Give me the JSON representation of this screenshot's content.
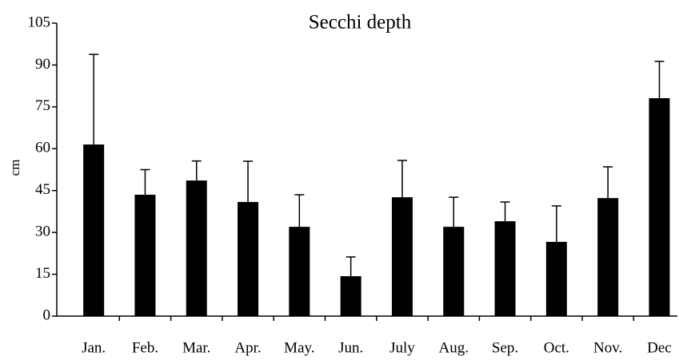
{
  "chart_data": {
    "type": "bar",
    "title": "Secchi depth",
    "y_label": "cm",
    "categories": [
      "Jan.",
      "Feb.",
      "Mar.",
      "Apr.",
      "May.",
      "Jun.",
      "July",
      "Aug.",
      "Sep.",
      "Oct.",
      "Nov.",
      "Dec"
    ],
    "values": [
      61.5,
      43.5,
      48.6,
      40.9,
      32,
      14.3,
      42.6,
      32,
      34,
      26.6,
      42.3,
      78.1
    ],
    "errors": [
      32.3,
      9,
      7,
      14.6,
      11.5,
      6.9,
      13.2,
      10.6,
      6.9,
      12.9,
      11.2,
      13.2
    ],
    "color": "#000000",
    "ylim": [
      0,
      105
    ],
    "yticks": [
      0,
      15,
      30,
      45,
      60,
      75,
      90,
      105
    ]
  }
}
